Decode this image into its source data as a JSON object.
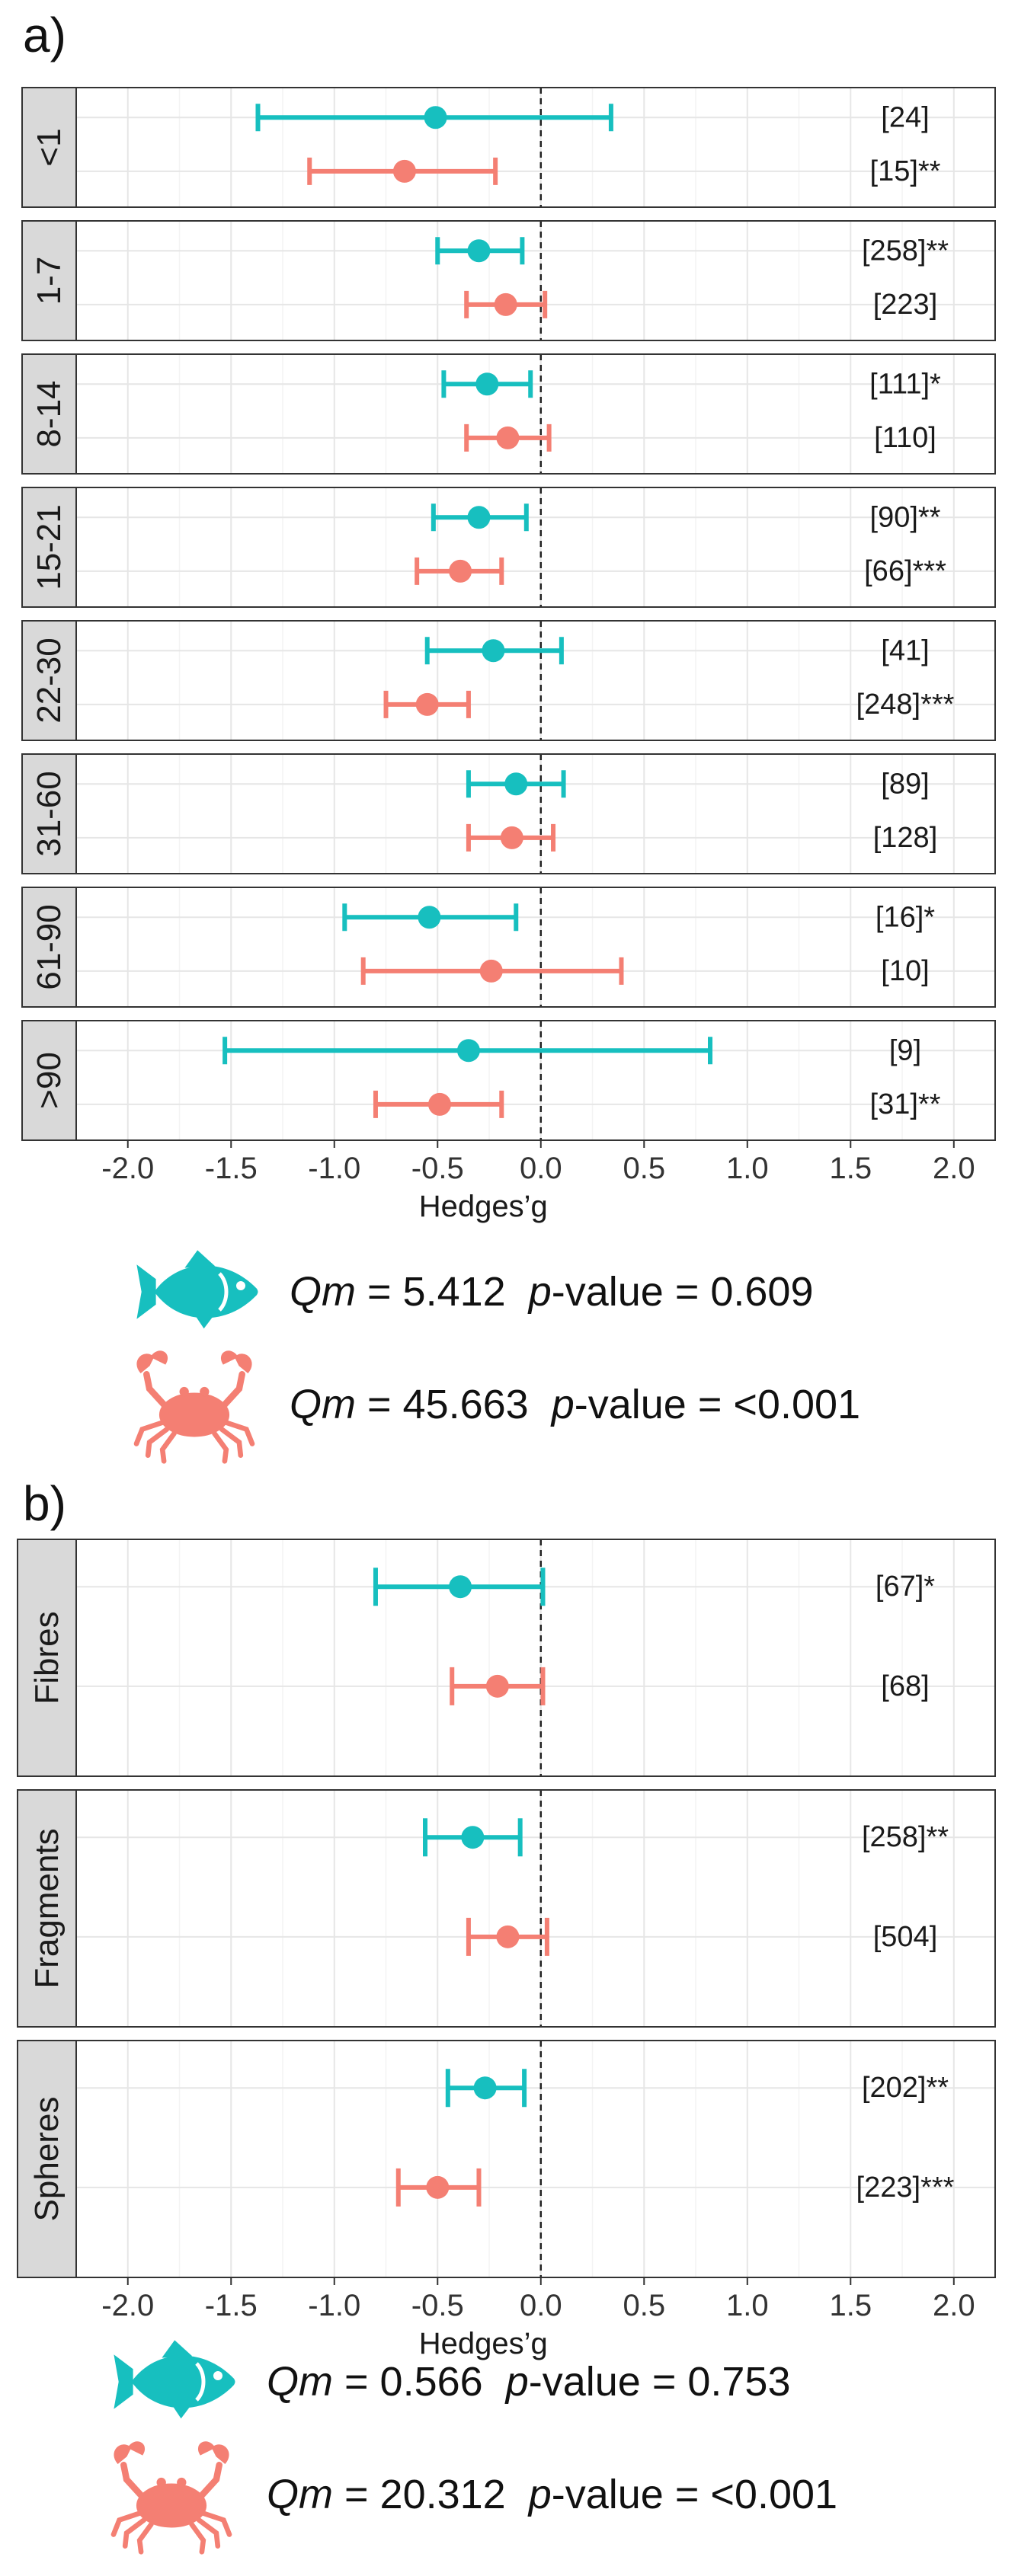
{
  "colors": {
    "fish": "#17bfbf",
    "crab": "#f47f73"
  },
  "icons": {
    "fish": "fish-icon",
    "crab": "crab-icon"
  },
  "chart_data": [
    {
      "panel_label": "a)",
      "type": "forest",
      "xlabel": "Hedges’g",
      "xlim": [
        -2.25,
        2.2
      ],
      "xticks": [
        -2.0,
        -1.5,
        -1.0,
        -0.5,
        0.0,
        0.5,
        1.0,
        1.5,
        2.0
      ],
      "tick_labels": [
        "-2.0",
        "-1.5",
        "-1.0",
        "-0.5",
        "0.0",
        "0.5",
        "1.0",
        "1.5",
        "2.0"
      ],
      "groups": [
        {
          "label": "<1",
          "points": [
            {
              "series": "fish",
              "estimate": -0.51,
              "lower": -1.37,
              "upper": 0.34,
              "count_label": "[24]"
            },
            {
              "series": "crab",
              "estimate": -0.66,
              "lower": -1.12,
              "upper": -0.22,
              "count_label": "[15]**"
            }
          ]
        },
        {
          "label": "1-7",
          "points": [
            {
              "series": "fish",
              "estimate": -0.3,
              "lower": -0.5,
              "upper": -0.09,
              "count_label": "[258]**"
            },
            {
              "series": "crab",
              "estimate": -0.17,
              "lower": -0.36,
              "upper": 0.02,
              "count_label": "[223]"
            }
          ]
        },
        {
          "label": "8-14",
          "points": [
            {
              "series": "fish",
              "estimate": -0.26,
              "lower": -0.47,
              "upper": -0.05,
              "count_label": "[111]*"
            },
            {
              "series": "crab",
              "estimate": -0.16,
              "lower": -0.36,
              "upper": 0.04,
              "count_label": "[110]"
            }
          ]
        },
        {
          "label": "15-21",
          "points": [
            {
              "series": "fish",
              "estimate": -0.3,
              "lower": -0.52,
              "upper": -0.07,
              "count_label": "[90]**"
            },
            {
              "series": "crab",
              "estimate": -0.39,
              "lower": -0.6,
              "upper": -0.19,
              "count_label": "[66]***"
            }
          ]
        },
        {
          "label": "22-30",
          "points": [
            {
              "series": "fish",
              "estimate": -0.23,
              "lower": -0.55,
              "upper": 0.1,
              "count_label": "[41]"
            },
            {
              "series": "crab",
              "estimate": -0.55,
              "lower": -0.75,
              "upper": -0.35,
              "count_label": "[248]***"
            }
          ]
        },
        {
          "label": "31-60",
          "points": [
            {
              "series": "fish",
              "estimate": -0.12,
              "lower": -0.35,
              "upper": 0.11,
              "count_label": "[89]"
            },
            {
              "series": "crab",
              "estimate": -0.14,
              "lower": -0.35,
              "upper": 0.06,
              "count_label": "[128]"
            }
          ]
        },
        {
          "label": "61-90",
          "points": [
            {
              "series": "fish",
              "estimate": -0.54,
              "lower": -0.95,
              "upper": -0.12,
              "count_label": "[16]*"
            },
            {
              "series": "crab",
              "estimate": -0.24,
              "lower": -0.86,
              "upper": 0.39,
              "count_label": "[10]"
            }
          ]
        },
        {
          "label": ">90",
          "points": [
            {
              "series": "fish",
              "estimate": -0.35,
              "lower": -1.53,
              "upper": 0.82,
              "count_label": "[9]"
            },
            {
              "series": "crab",
              "estimate": -0.49,
              "lower": -0.8,
              "upper": -0.19,
              "count_label": "[31]**"
            }
          ]
        }
      ]
    },
    {
      "panel_label": "b)",
      "type": "forest",
      "xlabel": "Hedges’g",
      "xlim": [
        -2.25,
        2.2
      ],
      "xticks": [
        -2.0,
        -1.5,
        -1.0,
        -0.5,
        0.0,
        0.5,
        1.0,
        1.5,
        2.0
      ],
      "tick_labels": [
        "-2.0",
        "-1.5",
        "-1.0",
        "-0.5",
        "0.0",
        "0.5",
        "1.0",
        "1.5",
        "2.0"
      ],
      "groups": [
        {
          "label": "Fibres",
          "points": [
            {
              "series": "fish",
              "estimate": -0.39,
              "lower": -0.8,
              "upper": 0.01,
              "count_label": "[67]*"
            },
            {
              "series": "crab",
              "estimate": -0.21,
              "lower": -0.43,
              "upper": 0.01,
              "count_label": "[68]"
            }
          ]
        },
        {
          "label": "Fragments",
          "points": [
            {
              "series": "fish",
              "estimate": -0.33,
              "lower": -0.56,
              "upper": -0.1,
              "count_label": "[258]**"
            },
            {
              "series": "crab",
              "estimate": -0.16,
              "lower": -0.35,
              "upper": 0.03,
              "count_label": "[504]"
            }
          ]
        },
        {
          "label": "Spheres",
          "points": [
            {
              "series": "fish",
              "estimate": -0.27,
              "lower": -0.45,
              "upper": -0.08,
              "count_label": "[202]**"
            },
            {
              "series": "crab",
              "estimate": -0.5,
              "lower": -0.69,
              "upper": -0.3,
              "count_label": "[223]***"
            }
          ]
        }
      ]
    }
  ],
  "stats": {
    "a": {
      "fish": {
        "qm_label": "Qm",
        "qm_value": " = 5.412  ",
        "p_label": "p",
        "p_value": "-value = 0.609"
      },
      "crab": {
        "qm_label": "Qm",
        "qm_value": " = 45.663  ",
        "p_label": "p",
        "p_value": "-value = <0.001"
      }
    },
    "b": {
      "fish": {
        "qm_label": "Qm",
        "qm_value": " = 0.566  ",
        "p_label": "p",
        "p_value": "-value = 0.753"
      },
      "crab": {
        "qm_label": "Qm",
        "qm_value": " = 20.312  ",
        "p_label": "p",
        "p_value": "-value = <0.001"
      }
    }
  }
}
